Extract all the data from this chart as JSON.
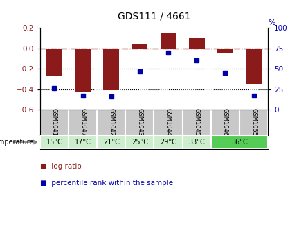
{
  "title": "GDS111 / 4661",
  "samples": [
    "GSM1041",
    "GSM1047",
    "GSM1042",
    "GSM1043",
    "GSM1044",
    "GSM1045",
    "GSM1046",
    "GSM1055"
  ],
  "log_ratio": [
    -0.27,
    -0.43,
    -0.41,
    0.04,
    0.15,
    0.1,
    -0.05,
    -0.35
  ],
  "percentile_rank": [
    26,
    17,
    16,
    47,
    70,
    60,
    45,
    17
  ],
  "bar_color": "#8B1A1A",
  "dot_color": "#0000AA",
  "ylim_left": [
    -0.6,
    0.2
  ],
  "ylim_right": [
    0,
    100
  ],
  "yticks_left": [
    -0.6,
    -0.4,
    -0.2,
    0.0,
    0.2
  ],
  "yticks_right": [
    0,
    25,
    50,
    75,
    100
  ],
  "temp_bg_light": "#cceecc",
  "temp_bg_highlight": "#55cc55",
  "sample_bg": "#c8c8c8",
  "temp_labels_per_sample": [
    "15°C",
    "17°C",
    "21°C",
    "25°C",
    "29°C",
    "33°C",
    "36°C",
    "36°C"
  ]
}
